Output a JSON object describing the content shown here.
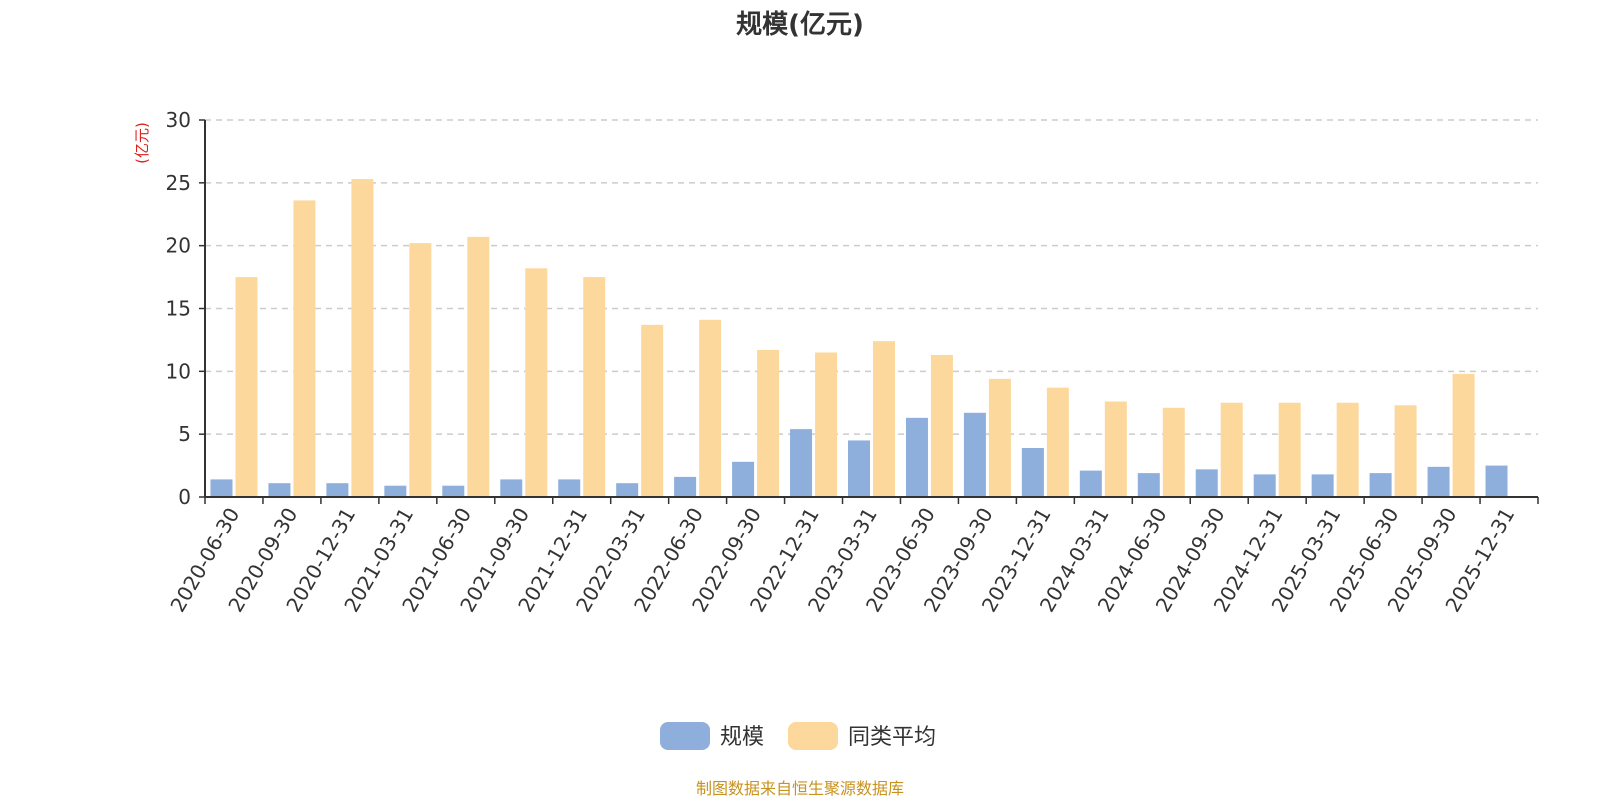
{
  "chart_data": {
    "type": "bar",
    "title": "规模(亿元)",
    "xlabel": "",
    "ylabel": "(亿元)",
    "ylim": [
      0,
      30
    ],
    "yticks": [
      0,
      5,
      10,
      15,
      20,
      25,
      30
    ],
    "grid": true,
    "legend_position": "bottom-center",
    "categories": [
      "2020-06-30",
      "2020-09-30",
      "2020-12-31",
      "2021-03-31",
      "2021-06-30",
      "2021-09-30",
      "2021-12-31",
      "2022-03-31",
      "2022-06-30",
      "2022-09-30",
      "2022-12-31",
      "2023-03-31",
      "2023-06-30",
      "2023-09-30",
      "2023-12-31",
      "2024-03-31",
      "2024-06-30",
      "2024-09-30",
      "2024-12-31",
      "2025-03-31",
      "2025-06-30",
      "2025-09-30",
      "2025-12-31"
    ],
    "series": [
      {
        "name": "规模",
        "color": "#8eaedc",
        "values": [
          1.4,
          1.1,
          1.1,
          0.9,
          0.9,
          1.4,
          1.4,
          1.1,
          1.6,
          2.8,
          5.4,
          4.5,
          6.3,
          6.7,
          3.9,
          2.1,
          1.9,
          2.2,
          1.8,
          1.8,
          1.9,
          2.4,
          2.5
        ]
      },
      {
        "name": "同类平均",
        "color": "#fdd89c",
        "values": [
          17.5,
          23.6,
          25.3,
          20.2,
          20.7,
          18.2,
          17.5,
          13.7,
          14.1,
          11.7,
          11.5,
          12.4,
          11.3,
          9.4,
          8.7,
          7.6,
          7.1,
          7.5,
          7.5,
          7.5,
          7.3,
          9.8,
          null
        ]
      }
    ]
  },
  "footer": {
    "source_text": "制图数据来自恒生聚源数据库"
  }
}
